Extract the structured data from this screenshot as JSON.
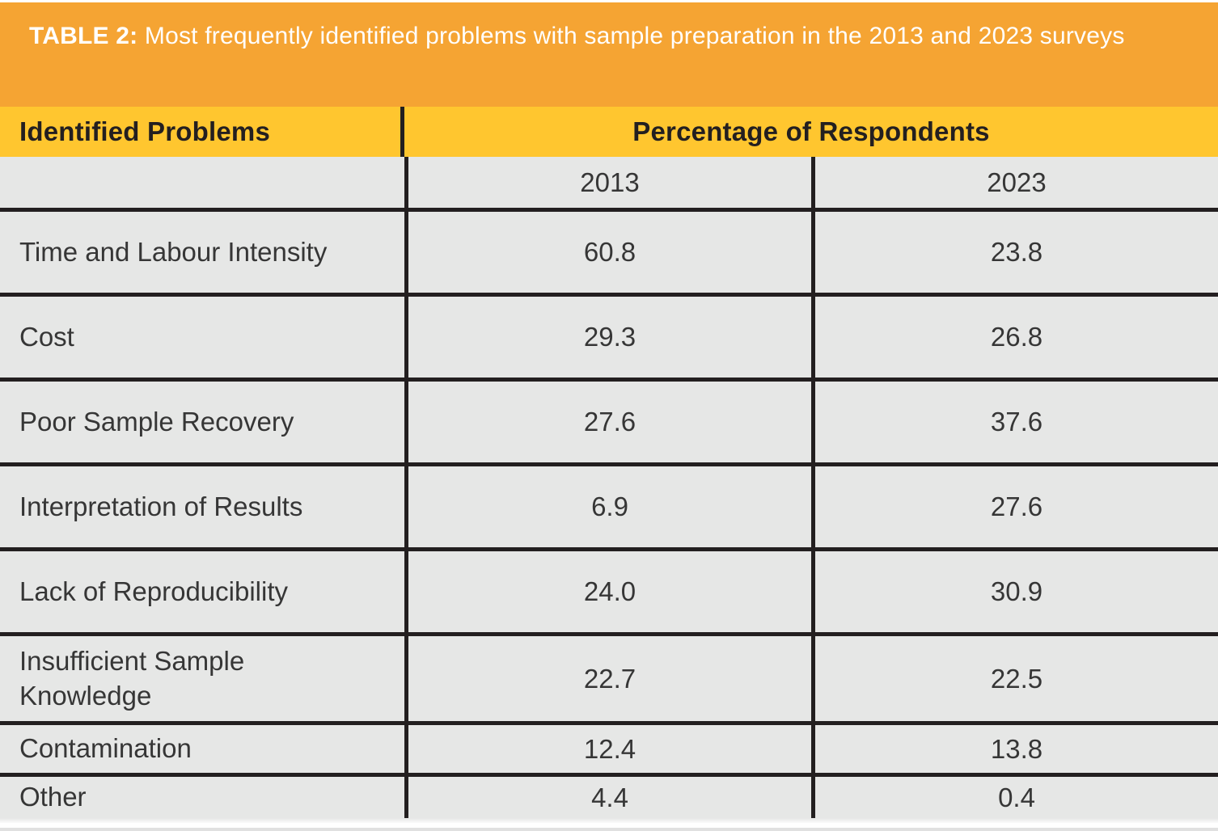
{
  "title": {
    "label": "TABLE 2:",
    "text": " Most frequently identified problems with sample preparation in the 2013 and 2023 surveys"
  },
  "colors": {
    "title_bar_background": "#F5A433",
    "header_row_background": "#FFC62F",
    "cell_background": "#E6E7E6",
    "border": "#231F20",
    "title_text": "#FFFFFF",
    "header_text": "#231F20",
    "cell_text": "#363636"
  },
  "table": {
    "col1_header": "Identified Problems",
    "col_group_header": "Percentage of Respondents",
    "year_headers": [
      "2013",
      "2023"
    ],
    "rows": [
      {
        "label": "Time and Labour Intensity",
        "v2013": "60.8",
        "v2023": "23.8"
      },
      {
        "label": "Cost",
        "v2013": "29.3",
        "v2023": "26.8"
      },
      {
        "label": "Poor Sample Recovery",
        "v2013": "27.6",
        "v2023": "37.6"
      },
      {
        "label": "Interpretation of Results",
        "v2013": "6.9",
        "v2023": "27.6"
      },
      {
        "label": "Lack of Reproducibility",
        "v2013": "24.0",
        "v2023": "30.9"
      },
      {
        "label": "Insufficient Sample Knowledge",
        "v2013": "22.7",
        "v2023": "22.5"
      },
      {
        "label": "Contamination",
        "v2013": "12.4",
        "v2023": "13.8"
      },
      {
        "label": "Other",
        "v2013": "4.4",
        "v2023": "0.4"
      }
    ]
  },
  "chart_data": {
    "type": "table",
    "title": "TABLE 2: Most frequently identified problems with sample preparation in the 2013 and 2023 surveys",
    "columns": [
      "Identified Problems",
      "2013",
      "2023"
    ],
    "categories": [
      "Time and Labour Intensity",
      "Cost",
      "Poor Sample Recovery",
      "Interpretation of Results",
      "Lack of Reproducibility",
      "Insufficient Sample Knowledge",
      "Contamination",
      "Other"
    ],
    "series": [
      {
        "name": "2013",
        "values": [
          60.8,
          29.3,
          27.6,
          6.9,
          24.0,
          22.7,
          12.4,
          4.4
        ]
      },
      {
        "name": "2023",
        "values": [
          23.8,
          26.8,
          37.6,
          27.6,
          30.9,
          22.5,
          13.8,
          0.4
        ]
      }
    ],
    "units": "Percentage of Respondents"
  }
}
